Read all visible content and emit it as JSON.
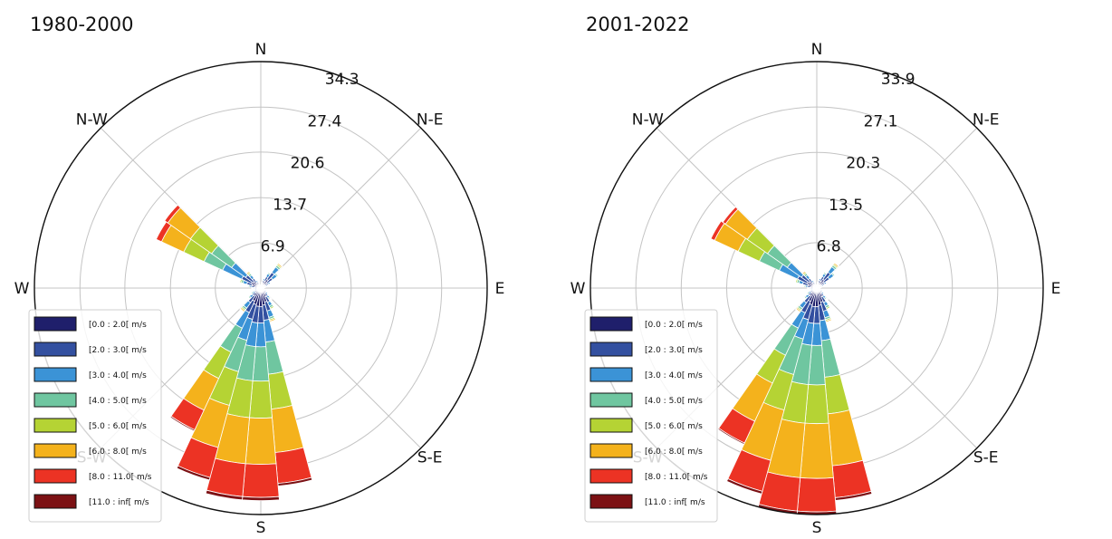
{
  "chart_data": [
    {
      "type": "windrose",
      "title": "1980-2000",
      "directions": [
        "N",
        "N-E",
        "E",
        "S-E",
        "S",
        "S-W",
        "W",
        "N-W"
      ],
      "rlabels": [
        "6.9",
        "13.7",
        "20.6",
        "27.4",
        "34.3"
      ],
      "rmax": 34.3,
      "legend_position": "lower-left",
      "series": [
        {
          "name": "[0.0 : 2.0[ m/s",
          "color": "#1f1f6b",
          "values": [
            0.3,
            0.5,
            0.8,
            1.2,
            1.6,
            1.2,
            0.8,
            0.5,
            0.4,
            0.3,
            0.3,
            0.4,
            0.5,
            0.7,
            1.0,
            1.5,
            2.2,
            2.6,
            2.8,
            2.8,
            2.6,
            2.2,
            1.5,
            1.0,
            0.7,
            0.5,
            0.5,
            0.6,
            0.9,
            1.4,
            1.6,
            1.4,
            1.0,
            0.6,
            0.4,
            0.3
          ]
        },
        {
          "name": "[2.0 : 3.0[ m/s",
          "color": "#3350a0",
          "values": [
            0.1,
            0.2,
            0.4,
            0.7,
            1.3,
            1.0,
            0.5,
            0.3,
            0.2,
            0.1,
            0.1,
            0.2,
            0.2,
            0.3,
            0.5,
            0.9,
            1.4,
            2.3,
            2.5,
            2.5,
            2.3,
            1.9,
            1.2,
            0.6,
            0.4,
            0.2,
            0.2,
            0.3,
            0.5,
            0.8,
            1.6,
            1.4,
            0.8,
            0.4,
            0.2,
            0.1
          ]
        },
        {
          "name": "[3.0 : 4.0[ m/s",
          "color": "#3b93d6",
          "values": [
            0.1,
            0.1,
            0.3,
            0.5,
            1.0,
            0.8,
            0.3,
            0.2,
            0.1,
            0.1,
            0.1,
            0.1,
            0.2,
            0.3,
            0.4,
            0.6,
            1.0,
            3.3,
            3.6,
            3.6,
            3.3,
            2.6,
            1.0,
            0.5,
            0.3,
            0.2,
            0.2,
            0.2,
            0.3,
            0.6,
            3.2,
            2.6,
            0.6,
            0.3,
            0.1,
            0.1
          ]
        },
        {
          "name": "[4.0 : 5.0[ m/s",
          "color": "#6fc6a0",
          "values": [
            0.0,
            0.1,
            0.1,
            0.2,
            0.3,
            0.2,
            0.1,
            0.1,
            0.0,
            0.0,
            0.0,
            0.1,
            0.1,
            0.1,
            0.2,
            0.3,
            0.3,
            4.9,
            5.2,
            5.2,
            4.9,
            4.0,
            0.3,
            0.2,
            0.2,
            0.1,
            0.1,
            0.1,
            0.2,
            0.3,
            3.1,
            3.7,
            0.3,
            0.1,
            0.0,
            0.0
          ]
        },
        {
          "name": "[5.0 : 6.0[ m/s",
          "color": "#b5d334",
          "values": [
            0.0,
            0.0,
            0.1,
            0.1,
            0.2,
            0.1,
            0.1,
            0.0,
            0.0,
            0.0,
            0.0,
            0.0,
            0.1,
            0.1,
            0.1,
            0.2,
            0.2,
            5.3,
            5.6,
            5.6,
            5.3,
            4.4,
            0.2,
            0.1,
            0.1,
            0.1,
            0.1,
            0.1,
            0.1,
            0.2,
            3.4,
            3.9,
            0.2,
            0.1,
            0.0,
            0.0
          ]
        },
        {
          "name": "[6.0 : 8.0[ m/s",
          "color": "#f4b21c",
          "values": [
            0.0,
            0.0,
            0.1,
            0.1,
            0.2,
            0.1,
            0.1,
            0.0,
            0.0,
            0.0,
            0.0,
            0.0,
            0.1,
            0.1,
            0.1,
            0.1,
            0.2,
            6.6,
            7.0,
            7.0,
            6.6,
            5.3,
            0.2,
            0.1,
            0.1,
            0.0,
            0.0,
            0.1,
            0.1,
            0.1,
            3.7,
            4.2,
            0.2,
            0.1,
            0.0,
            0.0
          ]
        },
        {
          "name": "[8.0 : 11.0[ m/s",
          "color": "#ec3324",
          "values": [
            0.0,
            0.0,
            0.0,
            0.1,
            0.1,
            0.1,
            0.0,
            0.0,
            0.0,
            0.0,
            0.0,
            0.0,
            0.0,
            0.0,
            0.1,
            0.1,
            0.1,
            4.7,
            5.0,
            5.0,
            4.7,
            3.3,
            0.1,
            0.1,
            0.0,
            0.0,
            0.0,
            0.0,
            0.1,
            0.1,
            0.9,
            0.6,
            0.1,
            0.0,
            0.0,
            0.0
          ]
        },
        {
          "name": "[11.0 : inf[ m/s",
          "color": "#7c1114",
          "values": [
            0.0,
            0.0,
            0.0,
            0.0,
            0.0,
            0.0,
            0.0,
            0.0,
            0.0,
            0.0,
            0.0,
            0.0,
            0.0,
            0.0,
            0.0,
            0.0,
            0.0,
            0.4,
            0.5,
            0.5,
            0.4,
            0.2,
            0.0,
            0.0,
            0.0,
            0.0,
            0.0,
            0.0,
            0.0,
            0.0,
            0.1,
            0.1,
            0.0,
            0.0,
            0.0,
            0.0
          ]
        }
      ]
    },
    {
      "type": "windrose",
      "title": "2001-2022",
      "directions": [
        "N",
        "N-E",
        "E",
        "S-E",
        "S",
        "S-W",
        "W",
        "N-W"
      ],
      "rlabels": [
        "6.8",
        "13.5",
        "20.3",
        "27.1",
        "33.9"
      ],
      "rmax": 33.9,
      "legend_position": "lower-left",
      "series": [
        {
          "name": "[0.0 : 2.0[ m/s",
          "color": "#1f1f6b",
          "values": [
            0.3,
            0.5,
            0.8,
            1.2,
            1.6,
            1.3,
            0.8,
            0.5,
            0.4,
            0.3,
            0.3,
            0.4,
            0.5,
            0.7,
            1.0,
            1.5,
            2.2,
            2.6,
            2.8,
            2.8,
            2.6,
            2.2,
            1.5,
            1.0,
            0.7,
            0.5,
            0.5,
            0.6,
            0.9,
            1.4,
            1.6,
            1.4,
            1.0,
            0.6,
            0.4,
            0.3
          ]
        },
        {
          "name": "[2.0 : 3.0[ m/s",
          "color": "#3350a0",
          "values": [
            0.1,
            0.2,
            0.4,
            0.7,
            1.3,
            1.0,
            0.5,
            0.3,
            0.2,
            0.1,
            0.1,
            0.2,
            0.2,
            0.3,
            0.5,
            0.9,
            1.4,
            2.3,
            2.5,
            2.5,
            2.3,
            1.9,
            1.2,
            0.6,
            0.4,
            0.2,
            0.2,
            0.3,
            0.5,
            0.8,
            1.6,
            1.4,
            0.8,
            0.4,
            0.2,
            0.1
          ]
        },
        {
          "name": "[3.0 : 4.0[ m/s",
          "color": "#3b93d6",
          "values": [
            0.1,
            0.1,
            0.3,
            0.5,
            1.0,
            0.8,
            0.3,
            0.2,
            0.1,
            0.1,
            0.1,
            0.1,
            0.2,
            0.3,
            0.4,
            0.6,
            1.0,
            3.0,
            3.3,
            3.3,
            3.0,
            2.5,
            1.0,
            0.5,
            0.3,
            0.2,
            0.2,
            0.2,
            0.3,
            0.6,
            3.0,
            2.6,
            0.6,
            0.3,
            0.1,
            0.1
          ]
        },
        {
          "name": "[4.0 : 5.0[ m/s",
          "color": "#6fc6a0",
          "values": [
            0.0,
            0.1,
            0.1,
            0.2,
            0.3,
            0.2,
            0.1,
            0.1,
            0.0,
            0.0,
            0.0,
            0.1,
            0.1,
            0.1,
            0.2,
            0.3,
            0.3,
            5.5,
            5.9,
            5.9,
            5.5,
            4.5,
            0.3,
            0.2,
            0.2,
            0.1,
            0.1,
            0.1,
            0.2,
            0.3,
            3.3,
            3.6,
            0.3,
            0.1,
            0.0,
            0.0
          ]
        },
        {
          "name": "[5.0 : 6.0[ m/s",
          "color": "#b5d334",
          "values": [
            0.0,
            0.0,
            0.1,
            0.1,
            0.2,
            0.1,
            0.1,
            0.0,
            0.0,
            0.0,
            0.0,
            0.0,
            0.1,
            0.1,
            0.1,
            0.2,
            0.2,
            5.5,
            5.8,
            5.8,
            5.5,
            4.6,
            0.2,
            0.1,
            0.1,
            0.1,
            0.1,
            0.1,
            0.1,
            0.2,
            3.5,
            3.7,
            0.2,
            0.1,
            0.0,
            0.0
          ]
        },
        {
          "name": "[6.0 : 8.0[ m/s",
          "color": "#f4b21c",
          "values": [
            0.0,
            0.0,
            0.1,
            0.1,
            0.2,
            0.1,
            0.1,
            0.0,
            0.0,
            0.0,
            0.0,
            0.0,
            0.1,
            0.1,
            0.1,
            0.1,
            0.2,
            7.8,
            8.2,
            8.2,
            7.8,
            6.3,
            0.2,
            0.1,
            0.1,
            0.0,
            0.0,
            0.1,
            0.1,
            0.1,
            3.9,
            4.0,
            0.2,
            0.1,
            0.0,
            0.0
          ]
        },
        {
          "name": "[8.0 : 11.0[ m/s",
          "color": "#ec3324",
          "values": [
            0.0,
            0.0,
            0.0,
            0.1,
            0.1,
            0.1,
            0.0,
            0.0,
            0.0,
            0.0,
            0.0,
            0.0,
            0.0,
            0.0,
            0.1,
            0.1,
            0.1,
            4.8,
            5.0,
            5.0,
            4.8,
            3.6,
            0.1,
            0.1,
            0.0,
            0.0,
            0.0,
            0.0,
            0.1,
            0.1,
            0.6,
            0.5,
            0.1,
            0.0,
            0.0,
            0.0
          ]
        },
        {
          "name": "[11.0 : inf[ m/s",
          "color": "#7c1114",
          "values": [
            0.0,
            0.0,
            0.0,
            0.0,
            0.0,
            0.0,
            0.0,
            0.0,
            0.0,
            0.0,
            0.0,
            0.0,
            0.0,
            0.0,
            0.0,
            0.0,
            0.0,
            0.4,
            0.5,
            0.5,
            0.4,
            0.2,
            0.0,
            0.0,
            0.0,
            0.0,
            0.0,
            0.0,
            0.0,
            0.0,
            0.0,
            0.1,
            0.0,
            0.0,
            0.0,
            0.0
          ]
        }
      ]
    }
  ]
}
